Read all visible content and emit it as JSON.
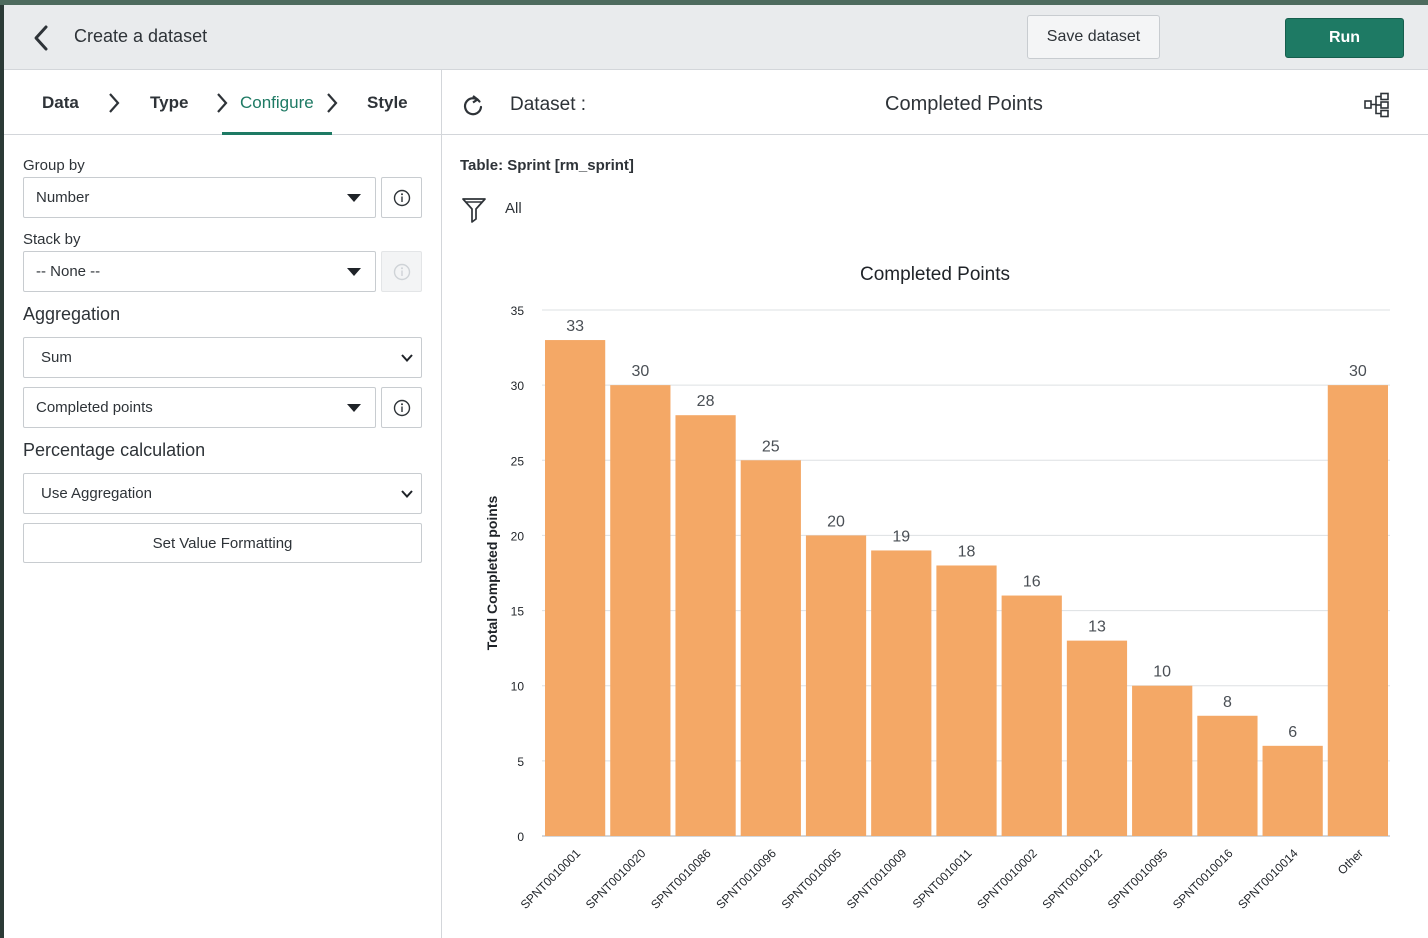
{
  "header": {
    "title": "Create a dataset",
    "save_label": "Save dataset",
    "run_label": "Run"
  },
  "steps": [
    {
      "label": "Data",
      "active": false
    },
    {
      "label": "Type",
      "active": false
    },
    {
      "label": "Configure",
      "active": true
    },
    {
      "label": "Style",
      "active": false
    }
  ],
  "config": {
    "group_by_label": "Group by",
    "group_by_value": "Number",
    "stack_by_label": "Stack by",
    "stack_by_value": "-- None --",
    "aggregation_label": "Aggregation",
    "aggregation_value": "Sum",
    "aggregation_field_value": "Completed points",
    "percentage_label": "Percentage calculation",
    "percentage_value": "Use Aggregation",
    "format_button_label": "Set Value Formatting"
  },
  "dataset": {
    "label": "Dataset :",
    "name": "Completed Points",
    "table": "Table: Sprint [rm_sprint]",
    "filter": "All"
  },
  "colors": {
    "accent": "#1e7a64",
    "bar": "#f4a866"
  },
  "icons": [
    "back-arrow-icon",
    "chevron-right-icon",
    "info-icon",
    "chevron-down-icon",
    "refresh-icon",
    "hierarchy-icon",
    "filter-icon"
  ],
  "chart_data": {
    "type": "bar",
    "title": "Completed Points",
    "xlabel": "",
    "ylabel": "Total Completed points",
    "ylim": [
      0,
      35
    ],
    "yticks": [
      0,
      5,
      10,
      15,
      20,
      25,
      30,
      35
    ],
    "grid": true,
    "categories": [
      "SPNT0010001",
      "SPNT0010020",
      "SPNT0010086",
      "SPNT0010096",
      "SPNT0010005",
      "SPNT0010009",
      "SPNT0010011",
      "SPNT0010002",
      "SPNT0010012",
      "SPNT0010095",
      "SPNT0010016",
      "SPNT0010014",
      "Other"
    ],
    "values": [
      33,
      30,
      28,
      25,
      20,
      19,
      18,
      16,
      13,
      10,
      8,
      6,
      30
    ]
  }
}
